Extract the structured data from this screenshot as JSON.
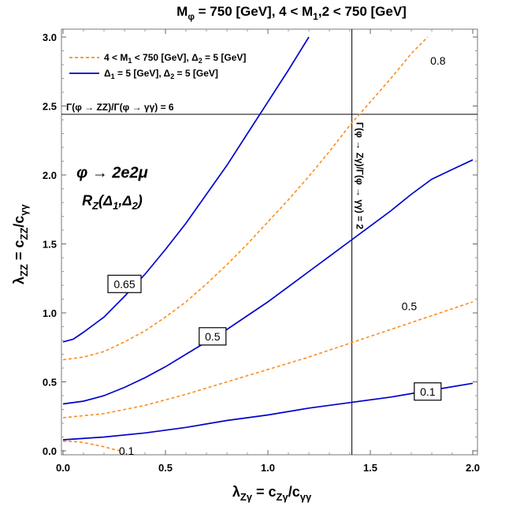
{
  "chart_data": {
    "type": "line",
    "title": "M_φ = 750 [GeV], 4 < M_1,2 < 750 [GeV]",
    "xlabel": "λ_Zγ = c_Zγ/c_γγ",
    "ylabel": "λ_ZZ = c_ZZ/c_γγ",
    "xlim": [
      0,
      2.0
    ],
    "ylim": [
      0,
      3.0
    ],
    "x_ticks": [
      "0.0",
      "0.5",
      "1.0",
      "1.5",
      "2.0"
    ],
    "y_ticks": [
      "0.0",
      "0.5",
      "1.0",
      "1.5",
      "2.0",
      "2.5",
      "3.0"
    ],
    "grid": false,
    "legend_position": "top-left",
    "legend": [
      {
        "label": "4 < M_1 < 750 [GeV], Δ_2 = 5 [GeV]",
        "style": "dashed",
        "color": "#ff8c1a"
      },
      {
        "label": "Δ_1 = 5 [GeV], Δ_2 = 5 [GeV]",
        "style": "solid",
        "color": "#0000cc"
      }
    ],
    "series": [
      {
        "style": "solid",
        "color": "#0000cc",
        "contour": "0.65",
        "x": [
          0.0,
          0.05,
          0.1,
          0.2,
          0.3,
          0.4,
          0.5,
          0.6,
          0.7,
          0.8,
          0.9,
          1.0,
          1.1,
          1.2
        ],
        "y": [
          0.79,
          0.81,
          0.86,
          0.97,
          1.12,
          1.28,
          1.46,
          1.65,
          1.86,
          2.07,
          2.3,
          2.53,
          2.76,
          3.0
        ]
      },
      {
        "style": "dashed",
        "color": "#ff8c1a",
        "contour": "0.8",
        "x": [
          0.0,
          0.1,
          0.2,
          0.3,
          0.4,
          0.5,
          0.6,
          0.7,
          0.8,
          0.9,
          1.0,
          1.1,
          1.2,
          1.3,
          1.4,
          1.5,
          1.6,
          1.7,
          1.78
        ],
        "y": [
          0.66,
          0.68,
          0.72,
          0.79,
          0.87,
          0.97,
          1.08,
          1.21,
          1.35,
          1.5,
          1.66,
          1.82,
          1.99,
          2.17,
          2.36,
          2.53,
          2.7,
          2.88,
          3.0
        ]
      },
      {
        "style": "solid",
        "color": "#0000cc",
        "contour": "0.5",
        "x": [
          0.0,
          0.1,
          0.2,
          0.3,
          0.4,
          0.5,
          0.6,
          0.7,
          0.8,
          0.9,
          1.0,
          1.1,
          1.2,
          1.3,
          1.4,
          1.5,
          1.6,
          1.7,
          1.8,
          1.9,
          2.0
        ],
        "y": [
          0.34,
          0.36,
          0.4,
          0.46,
          0.53,
          0.61,
          0.7,
          0.79,
          0.88,
          0.98,
          1.08,
          1.19,
          1.3,
          1.41,
          1.52,
          1.63,
          1.74,
          1.86,
          1.97,
          2.04,
          2.11
        ]
      },
      {
        "style": "dashed",
        "color": "#ff8c1a",
        "contour": "0.5",
        "x": [
          0.0,
          0.2,
          0.4,
          0.6,
          0.8,
          1.0,
          1.2,
          1.4,
          1.6,
          1.8,
          2.0
        ],
        "y": [
          0.24,
          0.27,
          0.33,
          0.41,
          0.5,
          0.59,
          0.68,
          0.78,
          0.88,
          0.98,
          1.08
        ]
      },
      {
        "style": "solid",
        "color": "#0000cc",
        "contour": "0.1",
        "x": [
          0.0,
          0.2,
          0.4,
          0.6,
          0.8,
          1.0,
          1.2,
          1.4,
          1.6,
          1.8,
          2.0
        ],
        "y": [
          0.08,
          0.1,
          0.13,
          0.17,
          0.22,
          0.26,
          0.31,
          0.35,
          0.39,
          0.44,
          0.49
        ]
      },
      {
        "style": "dashed",
        "color": "#ff8c1a",
        "contour": "0.1",
        "x": [
          0.0,
          0.05,
          0.1,
          0.15,
          0.2,
          0.25,
          0.28
        ],
        "y": [
          0.07,
          0.068,
          0.06,
          0.045,
          0.03,
          0.01,
          0.0
        ]
      }
    ],
    "contour_labels": [
      {
        "text": "0.65",
        "x": 0.3,
        "y": 1.21,
        "boxed": true
      },
      {
        "text": "0.8",
        "x": 1.83,
        "y": 2.83,
        "boxed": false
      },
      {
        "text": "0.5",
        "x": 0.73,
        "y": 0.83,
        "boxed": true
      },
      {
        "text": "0.5",
        "x": 1.69,
        "y": 1.05,
        "boxed": false
      },
      {
        "text": "0.1",
        "x": 1.78,
        "y": 0.43,
        "boxed": true
      },
      {
        "text": "0.1",
        "x": 0.31,
        "y": 0.0,
        "boxed": false
      }
    ],
    "reference_lines": [
      {
        "orientation": "horizontal",
        "value": 2.44,
        "label": "Γ(φ → ZZ)/Γ(φ → γγ) = 6"
      },
      {
        "orientation": "vertical",
        "value": 1.41,
        "label": "Γ(φ → Zγ)/Γ(φ → γγ) = 2"
      }
    ],
    "annotations": [
      {
        "text": "φ → 2e2μ",
        "x": 0.24,
        "y": 1.98
      },
      {
        "text": "R_Z(Δ_1,Δ_2)",
        "x": 0.24,
        "y": 1.78
      }
    ]
  }
}
